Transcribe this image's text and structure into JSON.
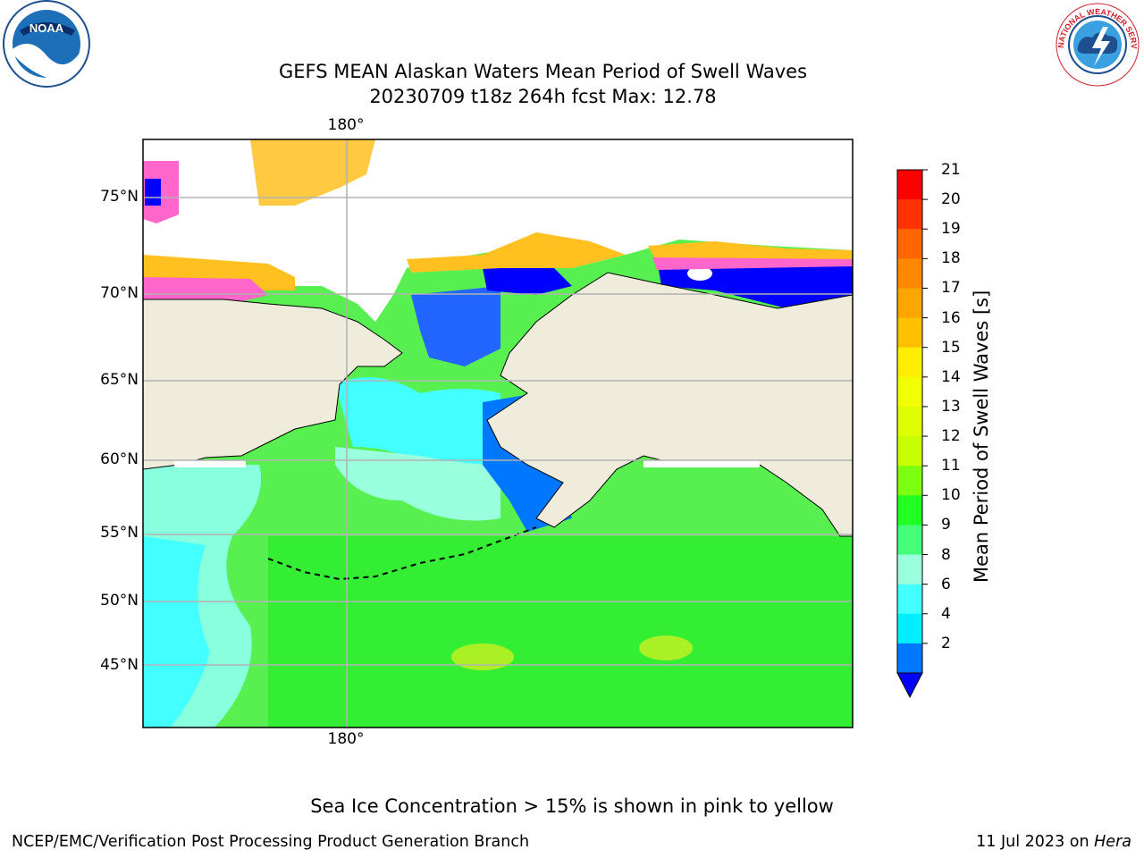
{
  "header": {
    "title_line1": "GEFS MEAN Alaskan Waters Mean Period of Swell Waves",
    "title_line2": "20230709 t18z 264h fcst   Max: 12.78"
  },
  "logos": {
    "left": {
      "text": "NOAA",
      "icon": "noaa-logo-icon"
    },
    "right": {
      "ring_text": "NATIONAL WEATHER SERVICE",
      "icon": "nws-logo-icon"
    }
  },
  "map": {
    "lat_labels": [
      "75°N",
      "70°N",
      "65°N",
      "60°N",
      "55°N",
      "50°N",
      "45°N"
    ],
    "lon_label_top": "180°",
    "lon_label_bottom": "180°"
  },
  "colorbar": {
    "title": "Mean Period of Swell Waves [s]",
    "ticks": [
      "21",
      "20",
      "19",
      "18",
      "17",
      "16",
      "15",
      "14",
      "13",
      "12",
      "11",
      "10",
      "9",
      "8",
      "6",
      "4",
      "2"
    ],
    "colors": [
      "#ff0000",
      "#ff3300",
      "#ff6600",
      "#ff8800",
      "#ffa500",
      "#ffc000",
      "#ffee00",
      "#f2ff00",
      "#ddff00",
      "#c8ff00",
      "#7cff10",
      "#22ff22",
      "#44ff77",
      "#99ffdd",
      "#44ffff",
      "#00eeff",
      "#0077ff"
    ],
    "extend_color": "#0000ff"
  },
  "palette": {
    "land": "#efecdc",
    "ice": "#ffffff",
    "grid": "#b2b2b2"
  },
  "footer": {
    "note": "Sea Ice Concentration > 15% is shown in pink to yellow",
    "left": "NCEP/EMC/Verification Post Processing Product Generation Branch",
    "right_prefix": "11 Jul 2023 on",
    "right_host": "Hera"
  }
}
